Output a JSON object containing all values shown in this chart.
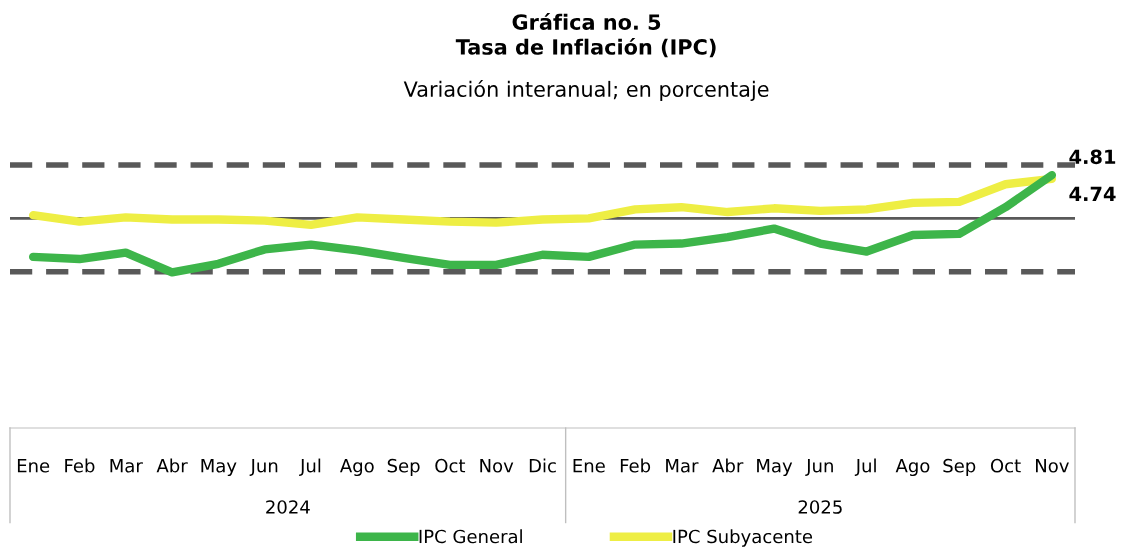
{
  "chart_data": {
    "type": "line",
    "title": "Gráfica no. 5\nTasa de Inflación (IPC)",
    "subtitle": "Variación interanual; en porcentaje",
    "categories": [
      "Ene",
      "Feb",
      "Mar",
      "Abr",
      "May",
      "Jun",
      "Jul",
      "Ago",
      "Sep",
      "Oct",
      "Nov",
      "Dic",
      "Ene",
      "Feb",
      "Mar",
      "Abr",
      "May",
      "Jun",
      "Jul",
      "Ago",
      "Sep",
      "Oct",
      "Nov"
    ],
    "series": [
      {
        "name": "IPC General",
        "color": "#3db54a",
        "values": [
          3.28,
          3.24,
          3.36,
          2.99,
          3.15,
          3.42,
          3.51,
          3.4,
          3.26,
          3.13,
          3.13,
          3.32,
          3.28,
          3.51,
          3.53,
          3.65,
          3.81,
          3.53,
          3.38,
          3.69,
          3.71,
          4.21,
          4.81
        ],
        "value_labels": [
          null,
          null,
          null,
          null,
          null,
          null,
          null,
          null,
          null,
          null,
          null,
          null,
          null,
          null,
          null,
          null,
          null,
          null,
          null,
          null,
          null,
          null,
          "4.81"
        ]
      },
      {
        "name": "IPC Subyacente",
        "color": "#eeee44",
        "values": [
          4.06,
          3.94,
          4.02,
          3.98,
          3.98,
          3.96,
          3.88,
          4.02,
          3.98,
          3.94,
          3.92,
          3.98,
          4.0,
          4.17,
          4.21,
          4.12,
          4.19,
          4.14,
          4.17,
          4.29,
          4.31,
          4.64,
          4.74
        ],
        "value_labels": [
          null,
          null,
          null,
          null,
          null,
          null,
          null,
          null,
          null,
          null,
          null,
          null,
          null,
          null,
          null,
          null,
          null,
          null,
          null,
          null,
          null,
          null,
          "4.74"
        ]
      }
    ],
    "annotations": [
      "2024",
      "2025"
    ],
    "ref_lines": [
      {
        "axis": "y",
        "value": 5,
        "color": "#595959",
        "line_style": "dashed"
      },
      {
        "axis": "y",
        "value": 4,
        "color": "#595959",
        "line_style": "solid"
      },
      {
        "axis": "y",
        "value": 3,
        "color": "#595959",
        "line_style": "dashed"
      }
    ],
    "tick_labels": "x",
    "grid": false,
    "legend": "bottom",
    "marker": "none",
    "line_style": "solid"
  }
}
